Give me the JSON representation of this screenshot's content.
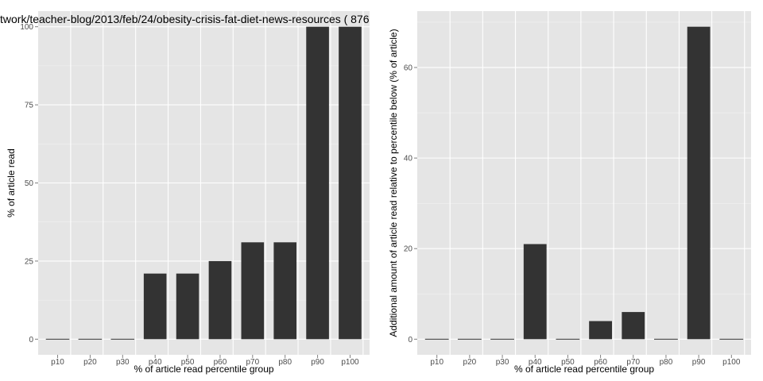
{
  "chart_data": [
    {
      "type": "bar",
      "title": "twork/teacher-blog/2013/feb/24/obesity-crisis-fat-diet-news-resources ( 876",
      "xlabel": "% of article read percentile group",
      "ylabel": "% of article read",
      "categories": [
        "p10",
        "p20",
        "p30",
        "p40",
        "p50",
        "p60",
        "p70",
        "p80",
        "p90",
        "p100"
      ],
      "values": [
        0,
        0,
        0,
        21,
        21,
        25,
        31,
        31,
        100,
        100
      ],
      "yticks": [
        0,
        25,
        50,
        75,
        100
      ],
      "ytick_labels": [
        "0",
        "25",
        "50",
        "75",
        "100"
      ],
      "ylim": [
        -5,
        105
      ],
      "bar_color": "#333333",
      "panel_color": "#e5e5e5"
    },
    {
      "type": "bar",
      "title": "",
      "xlabel": "% of article read percentile group",
      "ylabel": "Additional amount of article read relative to percentile below (% of article)",
      "categories": [
        "p10",
        "p20",
        "p30",
        "p40",
        "p50",
        "p60",
        "p70",
        "p80",
        "p90",
        "p100"
      ],
      "values": [
        0,
        0,
        0,
        21,
        0,
        4,
        6,
        0,
        69,
        0
      ],
      "yticks": [
        0,
        20,
        40,
        60
      ],
      "ytick_labels": [
        "0",
        "20",
        "40",
        "60"
      ],
      "ylim": [
        -3.45,
        72.45
      ],
      "bar_color": "#333333",
      "panel_color": "#e5e5e5"
    }
  ]
}
